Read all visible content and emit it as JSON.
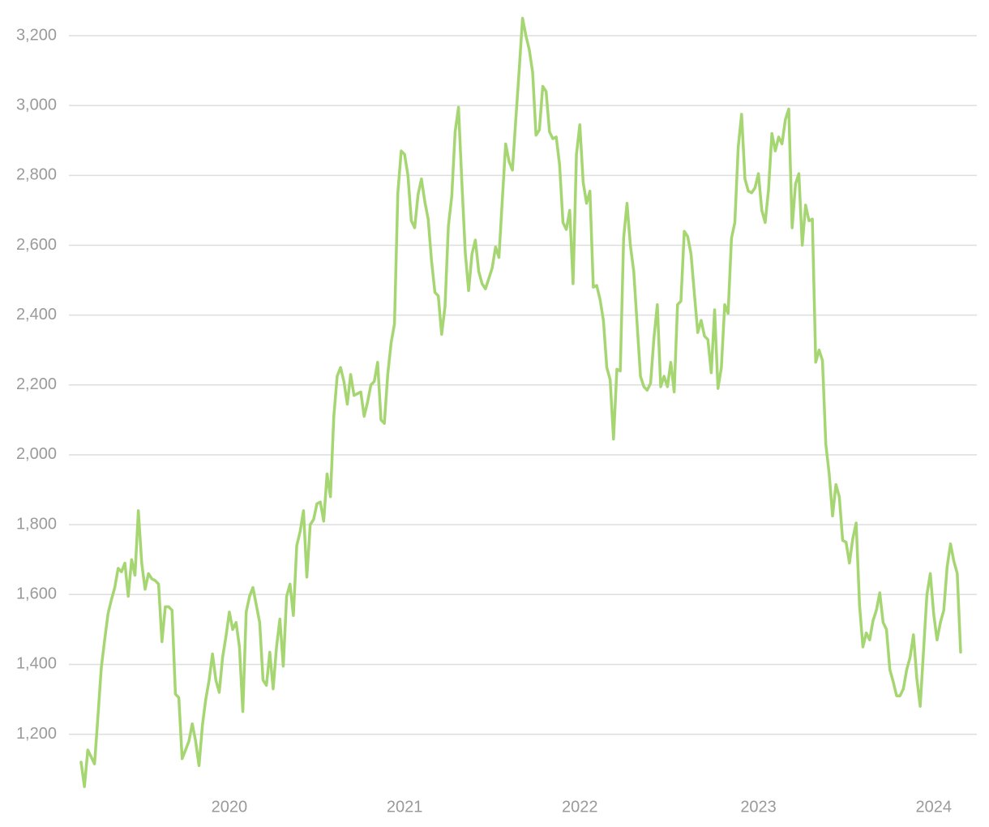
{
  "chart_data": {
    "type": "line",
    "color": "#a5d672",
    "grid": true,
    "ylim": [
      1025,
      3255
    ],
    "yticks": [
      {
        "value": 1200,
        "label": "1,200"
      },
      {
        "value": 1400,
        "label": "1,400"
      },
      {
        "value": 1600,
        "label": "1,600"
      },
      {
        "value": 1800,
        "label": "1,800"
      },
      {
        "value": 2000,
        "label": "2,000"
      },
      {
        "value": 2200,
        "label": "2,200"
      },
      {
        "value": 2400,
        "label": "2,400"
      },
      {
        "value": 2600,
        "label": "2,600"
      },
      {
        "value": 2800,
        "label": "2,800"
      },
      {
        "value": 3000,
        "label": "3,000"
      },
      {
        "value": 3200,
        "label": "3,200"
      }
    ],
    "categories": [
      null,
      null,
      null,
      null,
      null,
      null,
      null,
      null,
      null,
      null,
      null,
      null,
      null,
      null,
      null,
      null,
      null,
      null,
      null,
      null,
      null,
      null,
      null,
      null,
      null,
      null,
      null,
      null,
      null,
      null,
      null,
      null,
      null,
      null,
      null,
      null,
      null,
      null,
      null,
      null,
      null,
      null,
      null,
      null,
      "2020",
      null,
      null,
      null,
      null,
      null,
      null,
      null,
      null,
      null,
      null,
      null,
      null,
      null,
      null,
      null,
      null,
      null,
      null,
      null,
      null,
      null,
      null,
      null,
      null,
      null,
      null,
      null,
      null,
      null,
      null,
      null,
      null,
      null,
      null,
      null,
      null,
      null,
      null,
      null,
      null,
      null,
      null,
      null,
      null,
      null,
      null,
      null,
      null,
      null,
      null,
      null,
      "2021",
      null,
      null,
      null,
      null,
      null,
      null,
      null,
      null,
      null,
      null,
      null,
      null,
      null,
      null,
      null,
      null,
      null,
      null,
      null,
      null,
      null,
      null,
      null,
      null,
      null,
      null,
      null,
      null,
      null,
      null,
      null,
      null,
      null,
      null,
      null,
      null,
      null,
      null,
      null,
      null,
      null,
      null,
      null,
      null,
      null,
      null,
      null,
      null,
      null,
      null,
      null,
      "2022",
      null,
      null,
      null,
      null,
      null,
      null,
      null,
      null,
      null,
      null,
      null,
      null,
      null,
      null,
      null,
      null,
      null,
      null,
      null,
      null,
      null,
      null,
      null,
      null,
      null,
      null,
      null,
      null,
      null,
      null,
      null,
      null,
      null,
      null,
      null,
      null,
      null,
      null,
      null,
      null,
      null,
      null,
      null,
      null,
      null,
      null,
      null,
      null,
      null,
      null,
      null,
      null,
      "2023",
      null,
      null,
      null,
      null,
      null,
      null,
      null,
      null,
      null,
      null,
      null,
      null,
      null,
      null,
      null,
      null,
      null,
      null,
      null,
      null,
      null,
      null,
      null,
      null,
      null,
      null,
      null,
      null,
      null,
      null,
      null,
      null,
      null,
      null,
      null,
      null,
      null,
      null,
      null,
      null,
      null,
      null,
      null,
      null,
      null,
      null,
      null,
      null,
      null,
      null,
      null,
      "2024",
      null,
      null,
      null,
      null,
      null,
      null,
      null,
      null
    ],
    "values": [
      1120,
      1050,
      1155,
      1135,
      1115,
      1250,
      1390,
      1470,
      1545,
      1585,
      1620,
      1675,
      1665,
      1690,
      1595,
      1700,
      1655,
      1840,
      1690,
      1615,
      1660,
      1645,
      1640,
      1630,
      1465,
      1565,
      1565,
      1555,
      1315,
      1305,
      1130,
      1155,
      1180,
      1230,
      1180,
      1110,
      1225,
      1300,
      1355,
      1430,
      1355,
      1320,
      1420,
      1480,
      1550,
      1500,
      1520,
      1450,
      1265,
      1550,
      1595,
      1620,
      1570,
      1520,
      1355,
      1340,
      1435,
      1330,
      1450,
      1530,
      1395,
      1595,
      1630,
      1540,
      1740,
      1780,
      1840,
      1650,
      1800,
      1815,
      1860,
      1865,
      1810,
      1945,
      1880,
      2110,
      2225,
      2250,
      2210,
      2145,
      2230,
      2170,
      2175,
      2180,
      2110,
      2150,
      2200,
      2210,
      2265,
      2100,
      2090,
      2230,
      2320,
      2375,
      2750,
      2870,
      2860,
      2800,
      2670,
      2650,
      2745,
      2790,
      2725,
      2675,
      2555,
      2465,
      2455,
      2345,
      2425,
      2655,
      2740,
      2925,
      2995,
      2780,
      2580,
      2470,
      2575,
      2615,
      2525,
      2490,
      2475,
      2505,
      2535,
      2595,
      2565,
      2730,
      2890,
      2840,
      2815,
      2960,
      3100,
      3250,
      3200,
      3160,
      3095,
      2915,
      2930,
      3055,
      3040,
      2925,
      2905,
      2910,
      2830,
      2665,
      2645,
      2700,
      2490,
      2860,
      2945,
      2780,
      2720,
      2755,
      2480,
      2485,
      2445,
      2385,
      2250,
      2215,
      2045,
      2245,
      2240,
      2620,
      2720,
      2600,
      2525,
      2375,
      2225,
      2195,
      2185,
      2205,
      2335,
      2430,
      2195,
      2225,
      2195,
      2265,
      2180,
      2430,
      2440,
      2640,
      2625,
      2575,
      2460,
      2350,
      2385,
      2340,
      2330,
      2235,
      2415,
      2190,
      2250,
      2430,
      2405,
      2620,
      2665,
      2880,
      2975,
      2790,
      2755,
      2750,
      2765,
      2805,
      2700,
      2665,
      2760,
      2920,
      2870,
      2910,
      2890,
      2960,
      2990,
      2650,
      2775,
      2805,
      2600,
      2715,
      2670,
      2675,
      2265,
      2300,
      2270,
      2030,
      1945,
      1825,
      1915,
      1880,
      1755,
      1750,
      1690,
      1760,
      1805,
      1570,
      1450,
      1490,
      1470,
      1525,
      1555,
      1605,
      1520,
      1500,
      1385,
      1350,
      1310,
      1310,
      1330,
      1385,
      1420,
      1485,
      1360,
      1280,
      1440,
      1600,
      1660,
      1545,
      1470,
      1520,
      1555,
      1680,
      1745,
      1695,
      1660,
      1435
    ]
  }
}
